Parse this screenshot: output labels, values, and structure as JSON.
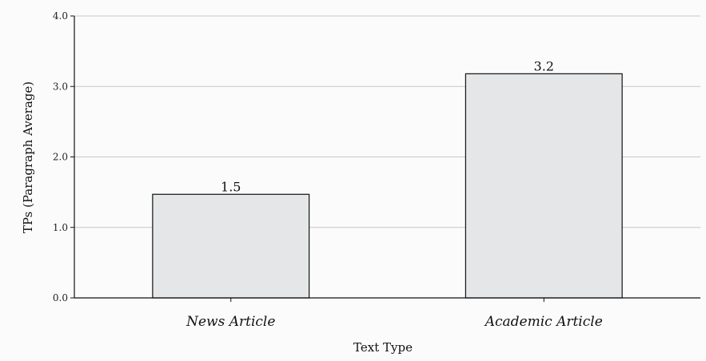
{
  "chart_data": {
    "type": "bar",
    "categories": [
      "News Article",
      "Academic Article"
    ],
    "values": [
      1.47,
      3.18
    ],
    "data_labels": [
      "1.5",
      "3.2"
    ],
    "xlabel": "Text Type",
    "ylabel": "TPs (Paragraph Average)",
    "ylim": [
      0,
      4
    ],
    "yticks": [
      "0.0",
      "1.0",
      "2.0",
      "3.0",
      "4.0"
    ],
    "grid": true,
    "colors": {
      "bar_fill": "#e5e6e8",
      "bar_stroke": "#111111",
      "grid": "#c8c8c8"
    }
  }
}
